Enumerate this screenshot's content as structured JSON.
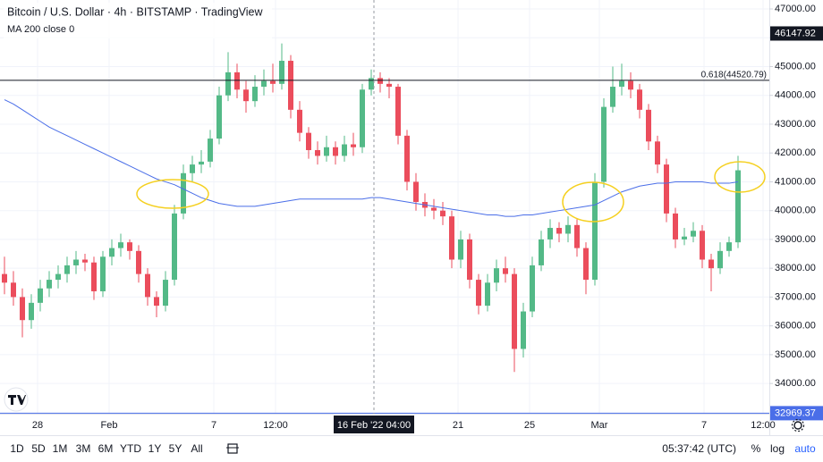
{
  "chart_data": {
    "type": "candlestick",
    "title": "Bitcoin / U.S. Dollar · 4h · BITSTAMP · TradingView",
    "open": [
      37800,
      37500,
      37000,
      36200,
      36800,
      37300,
      37600,
      37800,
      38100,
      38300,
      38200,
      37200,
      38400,
      38700,
      38900,
      38600,
      37800,
      37000,
      36700,
      37600,
      39900,
      41300,
      41600,
      41700,
      42500,
      44000,
      44800,
      44200,
      43800,
      44300,
      44500,
      44400,
      45200,
      43500,
      42700,
      42100,
      41900,
      42200,
      41900,
      42300,
      42200,
      44200,
      44600,
      44400,
      44300,
      42600,
      41000,
      40300,
      40100,
      40000,
      39800,
      38300,
      39000,
      37600,
      36700,
      37500,
      38000,
      37800,
      35200,
      36500,
      38100,
      39000,
      39400,
      39200,
      39500,
      38700,
      37600,
      41000,
      43600,
      44300,
      44500,
      44200,
      43500,
      42400,
      41600,
      39900,
      39000,
      39100,
      39300,
      38300,
      38000,
      38600,
      38900
    ],
    "high": [
      38400,
      37900,
      37300,
      37100,
      37600,
      37900,
      38100,
      38400,
      38600,
      38500,
      38400,
      38600,
      39000,
      39200,
      39000,
      38800,
      38000,
      37200,
      37900,
      40200,
      41600,
      41900,
      42100,
      42800,
      44300,
      45500,
      45100,
      44500,
      44700,
      44900,
      45100,
      45800,
      45400,
      43800,
      42900,
      42400,
      42600,
      42400,
      42600,
      42700,
      44400,
      44900,
      44800,
      44600,
      44400,
      42800,
      41300,
      40600,
      40400,
      40300,
      40000,
      39300,
      39200,
      37800,
      37800,
      38300,
      38400,
      38000,
      36800,
      38400,
      39300,
      39700,
      39600,
      39800,
      39700,
      38900,
      41300,
      43900,
      45000,
      45100,
      44800,
      44400,
      43700,
      42600,
      41800,
      40100,
      39400,
      39600,
      39500,
      38500,
      38900,
      39100,
      41900
    ],
    "low": [
      37100,
      36700,
      35600,
      35900,
      36500,
      37000,
      37300,
      37500,
      37800,
      37900,
      36900,
      37000,
      38100,
      38400,
      38300,
      37500,
      36700,
      36300,
      36500,
      37400,
      39700,
      41000,
      41300,
      41500,
      42300,
      43800,
      43900,
      43400,
      43600,
      44000,
      44100,
      44200,
      43200,
      42400,
      41800,
      41600,
      41700,
      41600,
      41700,
      41900,
      42000,
      44000,
      44100,
      43900,
      42300,
      40700,
      40000,
      39800,
      39700,
      39500,
      38000,
      38000,
      37300,
      36400,
      36500,
      37200,
      37500,
      34400,
      34900,
      36300,
      37900,
      38700,
      38900,
      38900,
      38400,
      37100,
      37400,
      40800,
      43400,
      44000,
      43900,
      43200,
      42100,
      41300,
      39600,
      38700,
      38800,
      38900,
      38000,
      37200,
      37800,
      38400,
      38700
    ],
    "close": [
      37500,
      37000,
      36200,
      36800,
      37300,
      37600,
      37800,
      38100,
      38300,
      38200,
      37200,
      38400,
      38700,
      38900,
      38600,
      37800,
      37000,
      36700,
      37600,
      39900,
      41300,
      41600,
      41700,
      42500,
      44000,
      44800,
      44200,
      43800,
      44300,
      44500,
      44400,
      45200,
      43500,
      42700,
      42100,
      41900,
      42200,
      41900,
      42300,
      42200,
      44200,
      44600,
      44400,
      44300,
      42600,
      41000,
      40300,
      40100,
      40000,
      39800,
      38300,
      39000,
      37600,
      36700,
      37500,
      38000,
      37800,
      35200,
      36500,
      38100,
      39000,
      39400,
      39200,
      39500,
      38700,
      37600,
      41000,
      43600,
      44300,
      44500,
      44200,
      43500,
      42400,
      41600,
      39900,
      39000,
      39100,
      39300,
      38300,
      38000,
      38600,
      38900,
      41400
    ],
    "colors": {
      "up": "#53b987",
      "down": "#eb4d5c"
    },
    "series": [
      {
        "name": "MA 200 close 0",
        "color": "#4a6ee8",
        "values": [
          43850,
          43700,
          43500,
          43300,
          43100,
          42900,
          42750,
          42600,
          42450,
          42300,
          42150,
          42000,
          41850,
          41700,
          41550,
          41400,
          41250,
          41100,
          41000,
          40900,
          40750,
          40600,
          40450,
          40350,
          40250,
          40200,
          40150,
          40150,
          40150,
          40200,
          40250,
          40300,
          40350,
          40400,
          40400,
          40400,
          40400,
          40400,
          40400,
          40400,
          40400,
          40450,
          40450,
          40400,
          40350,
          40300,
          40250,
          40200,
          40150,
          40100,
          40050,
          40000,
          39950,
          39900,
          39850,
          39850,
          39800,
          39800,
          39850,
          39850,
          39900,
          39950,
          40000,
          40050,
          40100,
          40150,
          40200,
          40350,
          40500,
          40650,
          40750,
          40850,
          40900,
          40950,
          40950,
          41000,
          41000,
          41000,
          41000,
          40950,
          40950,
          40950,
          41000
        ]
      }
    ],
    "xlim": [
      -0.5,
      85.5
    ],
    "xticks": [
      {
        "value": 3.7,
        "label": "28"
      },
      {
        "value": 11.7,
        "label": "Feb"
      },
      {
        "value": 23.4,
        "label": "7"
      },
      {
        "value": 30.3,
        "label": "12:00"
      },
      {
        "value": 50.7,
        "label": "21"
      },
      {
        "value": 58.7,
        "label": "25"
      },
      {
        "value": 66.5,
        "label": "Mar"
      },
      {
        "value": 78.2,
        "label": "7"
      },
      {
        "value": 84.8,
        "label": "12:00"
      }
    ],
    "crosshair": {
      "value": 41.3,
      "label": "16 Feb '22 04:00"
    },
    "ylim": [
      32950,
      47310
    ],
    "yticks": [
      {
        "value": 34000,
        "label": "34000.00"
      },
      {
        "value": 35000,
        "label": "35000.00"
      },
      {
        "value": 36000,
        "label": "36000.00"
      },
      {
        "value": 37000,
        "label": "37000.00"
      },
      {
        "value": 38000,
        "label": "38000.00"
      },
      {
        "value": 39000,
        "label": "39000.00"
      },
      {
        "value": 40000,
        "label": "40000.00"
      },
      {
        "value": 41000,
        "label": "41000.00"
      },
      {
        "value": 42000,
        "label": "42000.00"
      },
      {
        "value": 43000,
        "label": "43000.00"
      },
      {
        "value": 44000,
        "label": "44000.00"
      },
      {
        "value": 45000,
        "label": "45000.00"
      },
      {
        "value": 46000,
        "label": "46000.00"
      },
      {
        "value": 47000,
        "label": "47000.00"
      }
    ],
    "grid": true,
    "price_lines": [
      {
        "value": 44520.79,
        "label": "0.618(44520.79)",
        "color": "#131722",
        "show_line": true
      },
      {
        "value": 46147.92,
        "color": "#131722",
        "show_line": false
      },
      {
        "value": 32969.37,
        "color": "#4a6ee8",
        "show_line": true
      }
    ]
  },
  "toolbar": {
    "ranges": [
      "1D",
      "5D",
      "1M",
      "3M",
      "6M",
      "YTD",
      "1Y",
      "5Y",
      "All"
    ],
    "time": "05:37:42 (UTC)",
    "options": [
      "%",
      "log",
      "auto"
    ]
  }
}
